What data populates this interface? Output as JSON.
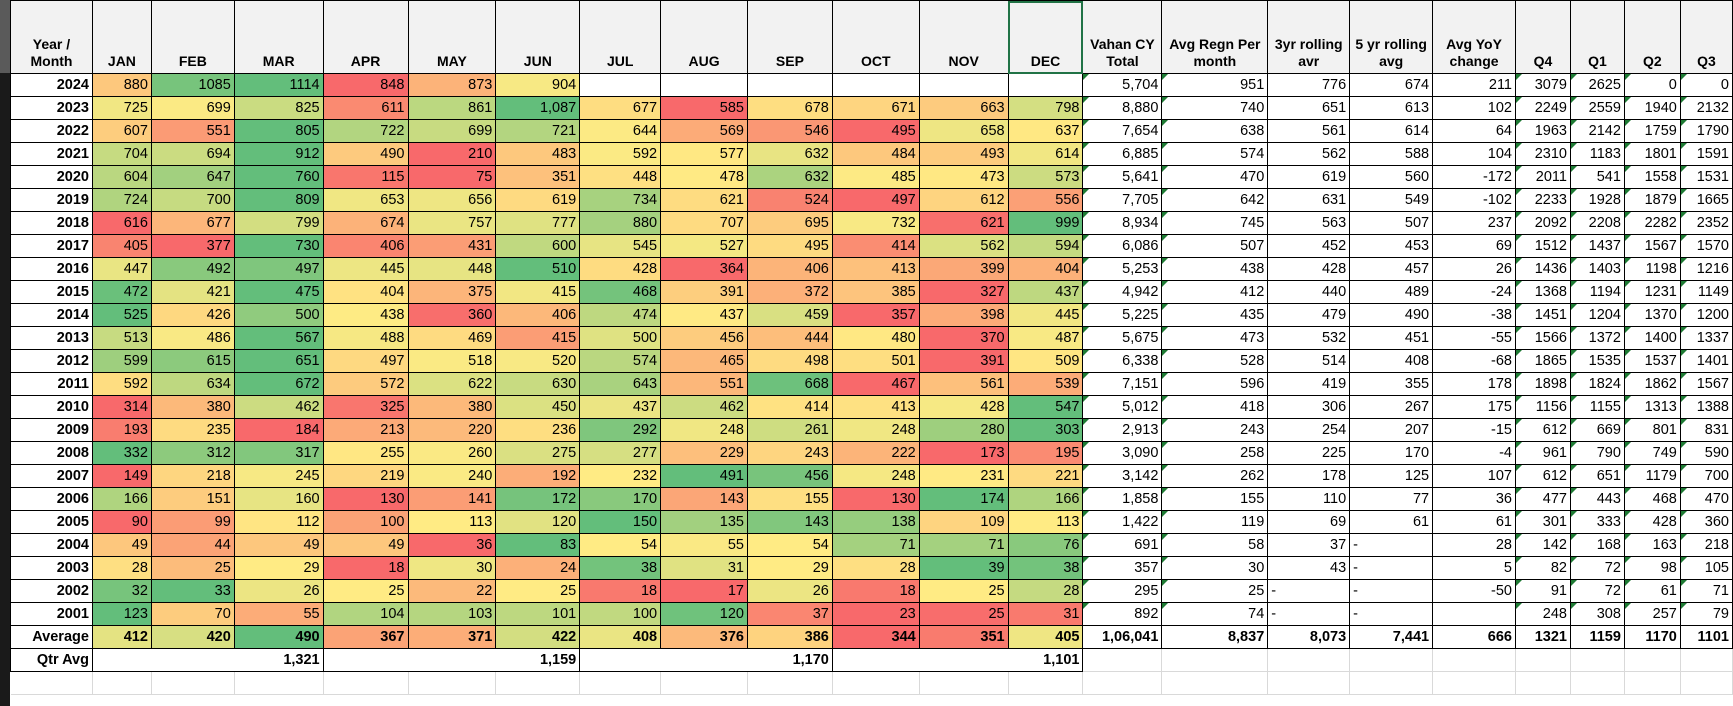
{
  "headers": {
    "year": "Year / Month",
    "months": [
      "JAN",
      "FEB",
      "MAR",
      "APR",
      "MAY",
      "JUN",
      "JUL",
      "AUG",
      "SEP",
      "OCT",
      "NOV",
      "DEC"
    ],
    "extra": [
      "Vahan CY Total",
      "Avg Regn Per month",
      "3yr rolling avr",
      "5 yr rolling avg",
      "Avg YoY change",
      "Q4",
      "Q1",
      "Q2",
      "Q3"
    ]
  },
  "colors": {
    "min": "#F8696B",
    "mid": "#FFEB84",
    "max": "#63BE7B",
    "header_bg": "#F2F2F2",
    "selection": "#217346",
    "error_indicator": "#1E7B34"
  },
  "rows": [
    {
      "year": "2024",
      "months": [
        "880",
        "1085",
        "1114",
        "848",
        "873",
        "904",
        "",
        "",
        "",
        "",
        "",
        ""
      ],
      "extra": [
        "5,704",
        "951",
        "776",
        "674",
        "211",
        "3079",
        "2625",
        "0",
        "0"
      ]
    },
    {
      "year": "2023",
      "months": [
        "725",
        "699",
        "825",
        "611",
        "861",
        "1,087",
        "677",
        "585",
        "678",
        "671",
        "663",
        "798"
      ],
      "extra": [
        "8,880",
        "740",
        "651",
        "613",
        "102",
        "2249",
        "2559",
        "1940",
        "2132"
      ]
    },
    {
      "year": "2022",
      "months": [
        "607",
        "551",
        "805",
        "722",
        "699",
        "721",
        "644",
        "569",
        "546",
        "495",
        "658",
        "637"
      ],
      "extra": [
        "7,654",
        "638",
        "561",
        "614",
        "64",
        "1963",
        "2142",
        "1759",
        "1790"
      ]
    },
    {
      "year": "2021",
      "months": [
        "704",
        "694",
        "912",
        "490",
        "210",
        "483",
        "592",
        "577",
        "632",
        "484",
        "493",
        "614"
      ],
      "extra": [
        "6,885",
        "574",
        "562",
        "588",
        "104",
        "2310",
        "1183",
        "1801",
        "1591"
      ]
    },
    {
      "year": "2020",
      "months": [
        "604",
        "647",
        "760",
        "115",
        "75",
        "351",
        "448",
        "478",
        "632",
        "485",
        "473",
        "573"
      ],
      "extra": [
        "5,641",
        "470",
        "619",
        "560",
        "-172",
        "2011",
        "541",
        "1558",
        "1531"
      ]
    },
    {
      "year": "2019",
      "months": [
        "724",
        "700",
        "809",
        "653",
        "656",
        "619",
        "734",
        "621",
        "524",
        "497",
        "612",
        "556"
      ],
      "extra": [
        "7,705",
        "642",
        "631",
        "549",
        "-102",
        "2233",
        "1928",
        "1879",
        "1665"
      ]
    },
    {
      "year": "2018",
      "months": [
        "616",
        "677",
        "799",
        "674",
        "757",
        "777",
        "880",
        "707",
        "695",
        "732",
        "621",
        "999"
      ],
      "extra": [
        "8,934",
        "745",
        "563",
        "507",
        "237",
        "2092",
        "2208",
        "2282",
        "2352"
      ]
    },
    {
      "year": "2017",
      "months": [
        "405",
        "377",
        "730",
        "406",
        "431",
        "600",
        "545",
        "527",
        "495",
        "414",
        "562",
        "594"
      ],
      "extra": [
        "6,086",
        "507",
        "452",
        "453",
        "69",
        "1512",
        "1437",
        "1567",
        "1570"
      ]
    },
    {
      "year": "2016",
      "months": [
        "447",
        "492",
        "497",
        "445",
        "448",
        "510",
        "428",
        "364",
        "406",
        "413",
        "399",
        "404"
      ],
      "extra": [
        "5,253",
        "438",
        "428",
        "457",
        "26",
        "1436",
        "1403",
        "1198",
        "1216"
      ]
    },
    {
      "year": "2015",
      "months": [
        "472",
        "421",
        "475",
        "404",
        "375",
        "415",
        "468",
        "391",
        "372",
        "385",
        "327",
        "437"
      ],
      "extra": [
        "4,942",
        "412",
        "440",
        "489",
        "-24",
        "1368",
        "1194",
        "1231",
        "1149"
      ]
    },
    {
      "year": "2014",
      "months": [
        "525",
        "426",
        "500",
        "438",
        "360",
        "406",
        "474",
        "437",
        "459",
        "357",
        "398",
        "445"
      ],
      "extra": [
        "5,225",
        "435",
        "479",
        "490",
        "-38",
        "1451",
        "1204",
        "1370",
        "1200"
      ]
    },
    {
      "year": "2013",
      "months": [
        "513",
        "486",
        "567",
        "488",
        "469",
        "415",
        "500",
        "456",
        "444",
        "480",
        "370",
        "487"
      ],
      "extra": [
        "5,675",
        "473",
        "532",
        "451",
        "-55",
        "1566",
        "1372",
        "1400",
        "1337"
      ]
    },
    {
      "year": "2012",
      "months": [
        "599",
        "615",
        "651",
        "497",
        "518",
        "520",
        "574",
        "465",
        "498",
        "501",
        "391",
        "509"
      ],
      "extra": [
        "6,338",
        "528",
        "514",
        "408",
        "-68",
        "1865",
        "1535",
        "1537",
        "1401"
      ]
    },
    {
      "year": "2011",
      "months": [
        "592",
        "634",
        "672",
        "572",
        "622",
        "630",
        "643",
        "551",
        "668",
        "467",
        "561",
        "539"
      ],
      "extra": [
        "7,151",
        "596",
        "419",
        "355",
        "178",
        "1898",
        "1824",
        "1862",
        "1567"
      ]
    },
    {
      "year": "2010",
      "months": [
        "314",
        "380",
        "462",
        "325",
        "380",
        "450",
        "437",
        "462",
        "414",
        "413",
        "428",
        "547"
      ],
      "extra": [
        "5,012",
        "418",
        "306",
        "267",
        "175",
        "1156",
        "1155",
        "1313",
        "1388"
      ]
    },
    {
      "year": "2009",
      "months": [
        "193",
        "235",
        "184",
        "213",
        "220",
        "236",
        "292",
        "248",
        "261",
        "248",
        "280",
        "303"
      ],
      "extra": [
        "2,913",
        "243",
        "254",
        "207",
        "-15",
        "612",
        "669",
        "801",
        "831"
      ]
    },
    {
      "year": "2008",
      "months": [
        "332",
        "312",
        "317",
        "255",
        "260",
        "275",
        "277",
        "229",
        "243",
        "222",
        "173",
        "195"
      ],
      "extra": [
        "3,090",
        "258",
        "225",
        "170",
        "-4",
        "961",
        "790",
        "749",
        "590"
      ]
    },
    {
      "year": "2007",
      "months": [
        "149",
        "218",
        "245",
        "219",
        "240",
        "192",
        "232",
        "491",
        "456",
        "248",
        "231",
        "221"
      ],
      "extra": [
        "3,142",
        "262",
        "178",
        "125",
        "107",
        "612",
        "651",
        "1179",
        "700"
      ]
    },
    {
      "year": "2006",
      "months": [
        "166",
        "151",
        "160",
        "130",
        "141",
        "172",
        "170",
        "143",
        "155",
        "130",
        "174",
        "166"
      ],
      "extra": [
        "1,858",
        "155",
        "110",
        "77",
        "36",
        "477",
        "443",
        "468",
        "470"
      ]
    },
    {
      "year": "2005",
      "months": [
        "90",
        "99",
        "112",
        "100",
        "113",
        "120",
        "150",
        "135",
        "143",
        "138",
        "109",
        "113"
      ],
      "extra": [
        "1,422",
        "119",
        "69",
        "61",
        "61",
        "301",
        "333",
        "428",
        "360"
      ]
    },
    {
      "year": "2004",
      "months": [
        "49",
        "44",
        "49",
        "49",
        "36",
        "83",
        "54",
        "55",
        "54",
        "71",
        "71",
        "76"
      ],
      "extra": [
        "691",
        "58",
        "37",
        "-",
        "28",
        "142",
        "168",
        "163",
        "218"
      ]
    },
    {
      "year": "2003",
      "months": [
        "28",
        "25",
        "29",
        "18",
        "30",
        "24",
        "38",
        "31",
        "29",
        "28",
        "39",
        "38"
      ],
      "extra": [
        "357",
        "30",
        "43",
        "-",
        "5",
        "82",
        "72",
        "98",
        "105"
      ]
    },
    {
      "year": "2002",
      "months": [
        "32",
        "33",
        "26",
        "25",
        "22",
        "25",
        "18",
        "17",
        "26",
        "18",
        "25",
        "28"
      ],
      "extra": [
        "295",
        "25",
        "-",
        "-",
        "-50",
        "91",
        "72",
        "61",
        "71"
      ]
    },
    {
      "year": "2001",
      "months": [
        "123",
        "70",
        "55",
        "104",
        "103",
        "101",
        "100",
        "120",
        "37",
        "23",
        "25",
        "31"
      ],
      "extra": [
        "892",
        "74",
        "-",
        "-",
        "",
        "248",
        "308",
        "257",
        "79"
      ]
    }
  ],
  "average": {
    "label": "Average",
    "months": [
      "412",
      "420",
      "490",
      "367",
      "371",
      "422",
      "408",
      "376",
      "386",
      "344",
      "351",
      "405"
    ],
    "extra": [
      "1,06,041",
      "8,837",
      "8,073",
      "7,441",
      "666",
      "1321",
      "1159",
      "1170",
      "1101"
    ]
  },
  "qtr_avg": {
    "label": "Qtr Avg",
    "values": [
      "1,321",
      "1,159",
      "1,170",
      "1,101"
    ]
  }
}
